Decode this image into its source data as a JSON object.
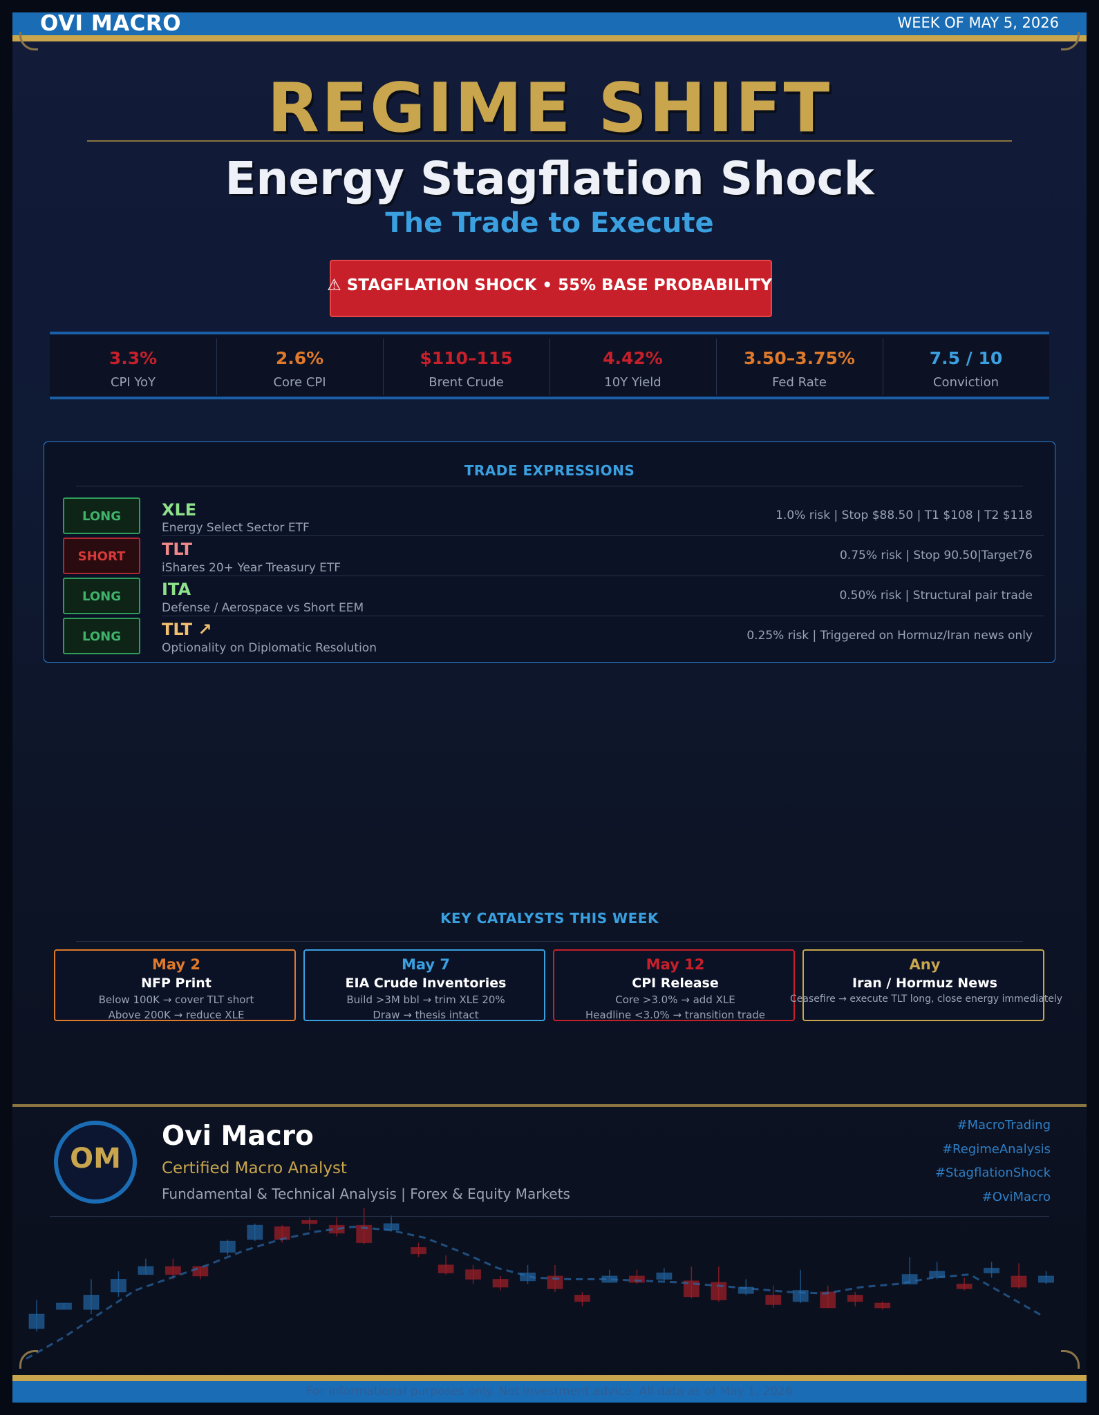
{
  "header": {
    "brand": "OVI MACRO",
    "week": "WEEK OF MAY 5, 2026"
  },
  "hero": {
    "title": "REGIME SHIFT",
    "subtitle": "Energy Stagflation Shock",
    "tagline": "The Trade to Execute",
    "alert": "⚠  STAGFLATION SHOCK  •  55% BASE PROBABILITY"
  },
  "stats": [
    {
      "value": "3.3%",
      "label": "CPI YoY",
      "color": "#c8202a"
    },
    {
      "value": "2.6%",
      "label": "Core CPI",
      "color": "#e07a2a"
    },
    {
      "value": "$110–115",
      "label": "Brent Crude",
      "color": "#c8202a"
    },
    {
      "value": "4.42%",
      "label": "10Y Yield",
      "color": "#c8202a"
    },
    {
      "value": "3.50–3.75%",
      "label": "Fed Rate",
      "color": "#e07a2a"
    },
    {
      "value": "7.5 / 10",
      "label": "Conviction",
      "color": "#3aa0e0"
    }
  ],
  "trades": {
    "heading": "TRADE EXPRESSIONS",
    "items": [
      {
        "side": "LONG",
        "ticker": "XLE",
        "desc": "Energy Select Sector ETF",
        "details": "1.0% risk  |  Stop $88.50  |  T1 $108  |  T2 $118",
        "ticker_color": "#8fe08a"
      },
      {
        "side": "SHORT",
        "ticker": "TLT",
        "desc": "iShares 20+ Year Treasury ETF",
        "details": "0.75% risk  |  Stop 90.50|Target76",
        "ticker_color": "#f08a8a"
      },
      {
        "side": "LONG",
        "ticker": "ITA",
        "desc": "Defense / Aerospace vs Short EEM",
        "details": "0.50% risk  |  Structural pair trade",
        "ticker_color": "#8fe08a"
      },
      {
        "side": "LONG",
        "ticker": "TLT ↗",
        "desc": "Optionality on Diplomatic Resolution",
        "details": "0.25% risk  |  Triggered on Hormuz/Iran news only",
        "ticker_color": "#f0c070"
      }
    ]
  },
  "catalysts": {
    "heading": "KEY CATALYSTS THIS WEEK",
    "items": [
      {
        "date": "May 2",
        "title": "NFP Print",
        "line1": "Below 100K → cover TLT short",
        "line2": "Above 200K → reduce XLE",
        "color": "#e07a2a"
      },
      {
        "date": "May 7",
        "title": "EIA Crude Inventories",
        "line1": "Build >3M bbl → trim XLE 20%",
        "line2": "Draw → thesis intact",
        "color": "#3aa0e0"
      },
      {
        "date": "May 12",
        "title": "CPI Release",
        "line1": "Core >3.0% → add XLE",
        "line2": "Headline <3.0% → transition trade",
        "color": "#c8202a"
      },
      {
        "date": "Any",
        "title": "Iran / Hormuz News",
        "line1": "Ceasefire → execute TLT long, close energy immediately",
        "line2": "",
        "color": "#c9a64d"
      }
    ]
  },
  "author": {
    "initials": "OM",
    "name": "Ovi Macro",
    "title": "Certified Macro Analyst",
    "focus": "Fundamental & Technical Analysis  |  Forex & Equity Markets",
    "tags": [
      "#MacroTrading",
      "#RegimeAnalysis",
      "#StagflationShock",
      "#OviMacro"
    ]
  },
  "footer": {
    "disclaimer": "For informational purposes only. Not investment advice. All data as of May 1, 2026"
  },
  "decor_candles": [
    {
      "o": 0.24,
      "c": 0.33,
      "h": 0.42,
      "l": 0.22
    },
    {
      "o": 0.36,
      "c": 0.4,
      "h": 0.4,
      "l": 0.36
    },
    {
      "o": 0.36,
      "c": 0.45,
      "h": 0.55,
      "l": 0.33
    },
    {
      "o": 0.47,
      "c": 0.55,
      "h": 0.6,
      "l": 0.44
    },
    {
      "o": 0.58,
      "c": 0.63,
      "h": 0.68,
      "l": 0.58
    },
    {
      "o": 0.63,
      "c": 0.58,
      "h": 0.68,
      "l": 0.55
    },
    {
      "o": 0.63,
      "c": 0.57,
      "h": 0.63,
      "l": 0.55
    },
    {
      "o": 0.72,
      "c": 0.79,
      "h": 0.8,
      "l": 0.7
    },
    {
      "o": 0.8,
      "c": 0.89,
      "h": 0.9,
      "l": 0.79
    },
    {
      "o": 0.88,
      "c": 0.8,
      "h": 0.89,
      "l": 0.78
    },
    {
      "o": 0.92,
      "c": 0.9,
      "h": 0.94,
      "l": 0.86
    },
    {
      "o": 0.89,
      "c": 0.84,
      "h": 0.94,
      "l": 0.82
    },
    {
      "o": 0.89,
      "c": 0.78,
      "h": 1.0,
      "l": 0.77
    },
    {
      "o": 0.86,
      "c": 0.9,
      "h": 0.95,
      "l": 0.85
    },
    {
      "o": 0.75,
      "c": 0.71,
      "h": 0.78,
      "l": 0.69
    },
    {
      "o": 0.64,
      "c": 0.59,
      "h": 0.7,
      "l": 0.58
    },
    {
      "o": 0.61,
      "c": 0.55,
      "h": 0.64,
      "l": 0.52
    },
    {
      "o": 0.55,
      "c": 0.5,
      "h": 0.57,
      "l": 0.48
    },
    {
      "o": 0.54,
      "c": 0.59,
      "h": 0.64,
      "l": 0.52
    },
    {
      "o": 0.57,
      "c": 0.49,
      "h": 0.64,
      "l": 0.47
    },
    {
      "o": 0.45,
      "c": 0.41,
      "h": 0.47,
      "l": 0.38
    },
    {
      "o": 0.53,
      "c": 0.57,
      "h": 0.61,
      "l": 0.53
    },
    {
      "o": 0.57,
      "c": 0.53,
      "h": 0.61,
      "l": 0.52
    },
    {
      "o": 0.55,
      "c": 0.59,
      "h": 0.62,
      "l": 0.54
    },
    {
      "o": 0.54,
      "c": 0.44,
      "h": 0.63,
      "l": 0.43
    },
    {
      "o": 0.53,
      "c": 0.42,
      "h": 0.63,
      "l": 0.41
    },
    {
      "o": 0.46,
      "c": 0.5,
      "h": 0.55,
      "l": 0.45
    },
    {
      "o": 0.45,
      "c": 0.39,
      "h": 0.51,
      "l": 0.37
    },
    {
      "o": 0.41,
      "c": 0.48,
      "h": 0.61,
      "l": 0.4
    },
    {
      "o": 0.47,
      "c": 0.37,
      "h": 0.51,
      "l": 0.37
    },
    {
      "o": 0.45,
      "c": 0.41,
      "h": 0.47,
      "l": 0.38
    },
    {
      "o": 0.4,
      "c": 0.37,
      "h": 0.41,
      "l": 0.36
    },
    {
      "o": 0.52,
      "c": 0.58,
      "h": 0.69,
      "l": 0.52
    },
    {
      "o": 0.56,
      "c": 0.6,
      "h": 0.66,
      "l": 0.55
    },
    {
      "o": 0.52,
      "c": 0.49,
      "h": 0.56,
      "l": 0.48
    },
    {
      "o": 0.59,
      "c": 0.62,
      "h": 0.66,
      "l": 0.56
    },
    {
      "o": 0.57,
      "c": 0.5,
      "h": 0.65,
      "l": 0.49
    },
    {
      "o": 0.53,
      "c": 0.57,
      "h": 0.6,
      "l": 0.52
    }
  ],
  "decor_trend": [
    0.05,
    0.18,
    0.33,
    0.48,
    0.56,
    0.64,
    0.73,
    0.8,
    0.85,
    0.88,
    0.86,
    0.81,
    0.72,
    0.62,
    0.56,
    0.55,
    0.55,
    0.54,
    0.53,
    0.51,
    0.49,
    0.47,
    0.46,
    0.5,
    0.52,
    0.56,
    0.58,
    0.45,
    0.32
  ]
}
